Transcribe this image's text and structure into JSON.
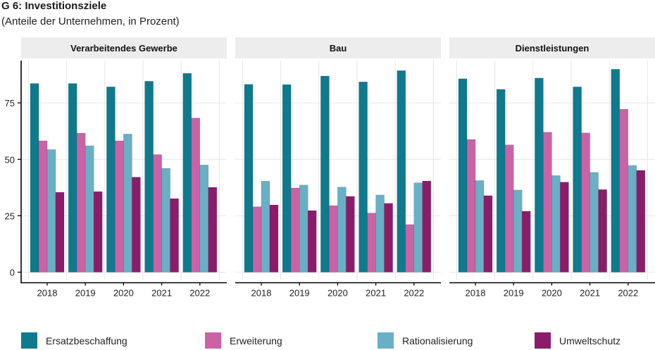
{
  "chart_data": {
    "type": "bar",
    "title": "G 6: Investitionsziele",
    "subtitle": "(Anteile der Unternehmen, in Prozent)",
    "xlabel": "",
    "ylabel": "",
    "ylim": [
      0,
      92
    ],
    "yticks": [
      0,
      25,
      50,
      75
    ],
    "grid": true,
    "legend_position": "bottom",
    "categories": [
      "2018",
      "2019",
      "2020",
      "2021",
      "2022"
    ],
    "series_meta": [
      {
        "name": "Ersatzbeschaffung",
        "color": "#0e7a8e"
      },
      {
        "name": "Erweiterung",
        "color": "#cc62a6"
      },
      {
        "name": "Rationalisierung",
        "color": "#68b0c5"
      },
      {
        "name": "Umweltschutz",
        "color": "#8c1c6a"
      }
    ],
    "panels": [
      {
        "name": "Verarbeitendes Gewerbe",
        "series": [
          {
            "name": "Ersatzbeschaffung",
            "values": [
              83.6,
              83.6,
              82.1,
              84.6,
              88.1
            ]
          },
          {
            "name": "Erweiterung",
            "values": [
              58.2,
              61.6,
              58.2,
              52.1,
              68.3
            ]
          },
          {
            "name": "Rationalisierung",
            "values": [
              54.3,
              56.0,
              61.2,
              46.0,
              47.5
            ]
          },
          {
            "name": "Umweltschutz",
            "values": [
              35.4,
              35.7,
              42.1,
              32.6,
              37.6
            ]
          }
        ]
      },
      {
        "name": "Bau",
        "series": [
          {
            "name": "Ersatzbeschaffung",
            "values": [
              83.2,
              83.1,
              86.9,
              84.3,
              89.3
            ]
          },
          {
            "name": "Erweiterung",
            "values": [
              29.0,
              37.3,
              29.5,
              26.2,
              21.1
            ]
          },
          {
            "name": "Rationalisierung",
            "values": [
              40.3,
              38.6,
              37.7,
              34.2,
              39.6
            ]
          },
          {
            "name": "Umweltschutz",
            "values": [
              29.8,
              27.3,
              33.6,
              30.5,
              40.4
            ]
          }
        ]
      },
      {
        "name": "Dienstleistungen",
        "series": [
          {
            "name": "Ersatzbeschaffung",
            "values": [
              85.7,
              81.0,
              86.0,
              82.1,
              89.9
            ]
          },
          {
            "name": "Erweiterung",
            "values": [
              58.8,
              56.4,
              62.0,
              61.7,
              72.2
            ]
          },
          {
            "name": "Rationalisierung",
            "values": [
              40.6,
              36.4,
              42.8,
              44.2,
              47.3
            ]
          },
          {
            "name": "Umweltschutz",
            "values": [
              33.9,
              27.0,
              39.9,
              36.6,
              45.1
            ]
          }
        ]
      }
    ]
  }
}
